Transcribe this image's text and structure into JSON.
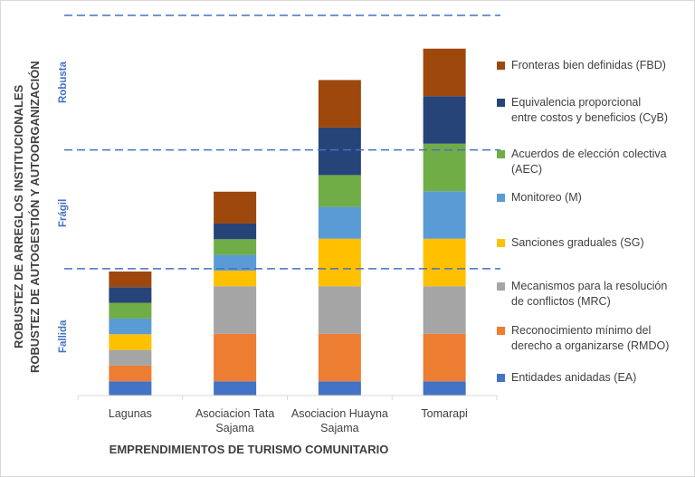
{
  "chart_data": {
    "type": "bar",
    "stacked": true,
    "xlabel": "EMPRENDIMIENTOS DE TURISMO COMUNITARIO",
    "ylabel_lines": [
      "ROBUSTEZ DE ARREGLOS INSTITUCIONALES",
      "ROBUSTEZ DE AUTOGESTIÓN Y AUTOORGANIZACIÓN"
    ],
    "categories": [
      "Lagunas",
      "Asociacion Tata Sajama",
      "Asociacion Huayna Sajama",
      "Tomarapi"
    ],
    "ylim": [
      0,
      8
    ],
    "grid": false,
    "legend_position": "right",
    "series": [
      {
        "name": "Entidades anidadas (EA)",
        "color": "#4472c4",
        "values": [
          0.3,
          0.3,
          0.3,
          0.3
        ]
      },
      {
        "name": "Reconocimiento mínimo del derecho a organizarse (RMDO)",
        "color": "#ed7d31",
        "values": [
          0.33,
          1,
          1,
          1
        ]
      },
      {
        "name": "Mecanismos para la resolución de conflictos (MRC)",
        "color": "#a5a5a5",
        "values": [
          0.33,
          1,
          1,
          1
        ]
      },
      {
        "name": "Sanciones graduales (SG)",
        "color": "#ffc000",
        "values": [
          0.33,
          0.33,
          1,
          1
        ]
      },
      {
        "name": "Monitoreo (M)",
        "color": "#5b9bd5",
        "values": [
          0.33,
          0.33,
          0.67,
          1
        ]
      },
      {
        "name": "Acuerdos de elección colectiva (AEC)",
        "color": "#70ad47",
        "values": [
          0.33,
          0.33,
          0.67,
          1
        ]
      },
      {
        "name": "Equivalencia proporcional entre costos y beneficios (CyB)",
        "color": "#264478",
        "values": [
          0.33,
          0.33,
          1,
          1
        ]
      },
      {
        "name": "Fronteras bien definidas (FBD)",
        "color": "#9e480e",
        "values": [
          0.33,
          0.67,
          1,
          1
        ]
      }
    ],
    "thresholds": [
      {
        "value": 2.67,
        "style": "dashed",
        "color": "#4472c4"
      },
      {
        "value": 5.17,
        "style": "dashed",
        "color": "#4472c4"
      },
      {
        "value": 8.0,
        "style": "dashed",
        "color": "#4472c4"
      }
    ],
    "zones": [
      {
        "label": "Fallida",
        "from": 0,
        "to": 2.67
      },
      {
        "label": "Frágil",
        "from": 2.67,
        "to": 5.17
      },
      {
        "label": "Robusta",
        "from": 5.17,
        "to": 8.0
      }
    ],
    "legend_order": [
      7,
      6,
      5,
      4,
      3,
      2,
      1,
      0
    ],
    "legend_lines": [
      [
        "Fronteras bien definidas (FBD)"
      ],
      [
        "Equivalencia proporcional",
        "entre costos y beneficios (CyB)"
      ],
      [
        "Acuerdos de elección colectiva",
        "(AEC)"
      ],
      [
        "Monitoreo (M)"
      ],
      [
        "Sanciones graduales (SG)"
      ],
      [
        "Mecanismos para la resolución",
        "de conflictos (MRC)"
      ],
      [
        "Reconocimiento mínimo del",
        "derecho a organizarse (RMDO)"
      ],
      [
        "Entidades anidadas (EA)"
      ]
    ],
    "category_lines": [
      [
        "Lagunas"
      ],
      [
        "Asociacion Tata",
        "Sajama"
      ],
      [
        "Asociacion Huayna",
        "Sajama"
      ],
      [
        "Tomarapi"
      ]
    ]
  }
}
